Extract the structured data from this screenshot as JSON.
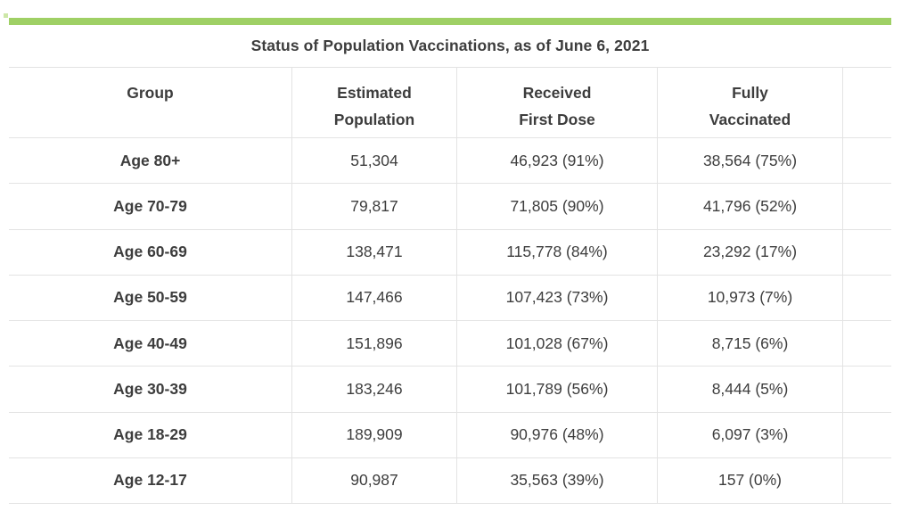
{
  "title": "Status of Population Vaccinations, as of June 6, 2021",
  "table": {
    "headers": [
      {
        "label": "Group"
      },
      {
        "label": "Estimated\nPopulation"
      },
      {
        "label": "Received\nFirst Dose"
      },
      {
        "label": "Fully\nVaccinated"
      },
      {
        "label": ""
      }
    ],
    "rows": [
      {
        "group": "Age 80+",
        "estimated_population": "51,304",
        "received_first_dose": "46,923 (91%)",
        "fully_vaccinated": "38,564 (75%)"
      },
      {
        "group": "Age 70-79",
        "estimated_population": "79,817",
        "received_first_dose": "71,805 (90%)",
        "fully_vaccinated": "41,796 (52%)"
      },
      {
        "group": "Age 60-69",
        "estimated_population": "138,471",
        "received_first_dose": "115,778 (84%)",
        "fully_vaccinated": "23,292 (17%)"
      },
      {
        "group": "Age 50-59",
        "estimated_population": "147,466",
        "received_first_dose": "107,423 (73%)",
        "fully_vaccinated": "10,973 (7%)"
      },
      {
        "group": "Age 40-49",
        "estimated_population": "151,896",
        "received_first_dose": "101,028 (67%)",
        "fully_vaccinated": "8,715 (6%)"
      },
      {
        "group": "Age 30-39",
        "estimated_population": "183,246",
        "received_first_dose": "101,789 (56%)",
        "fully_vaccinated": "8,444 (5%)"
      },
      {
        "group": "Age 18-29",
        "estimated_population": "189,909",
        "received_first_dose": "90,976 (48%)",
        "fully_vaccinated": "6,097 (3%)"
      },
      {
        "group": "Age 12-17",
        "estimated_population": "90,987",
        "received_first_dose": "35,563 (39%)",
        "fully_vaccinated": "157 (0%)"
      }
    ]
  },
  "chart_data": {
    "type": "table",
    "title": "Status of Population Vaccinations, as of June 6, 2021",
    "columns": [
      "Group",
      "Estimated Population",
      "Received First Dose",
      "Fully Vaccinated"
    ],
    "rows": [
      {
        "group": "Age 80+",
        "estimated_population": 51304,
        "received_first_dose": 46923,
        "received_first_dose_pct": 91,
        "fully_vaccinated": 38564,
        "fully_vaccinated_pct": 75
      },
      {
        "group": "Age 70-79",
        "estimated_population": 79817,
        "received_first_dose": 71805,
        "received_first_dose_pct": 90,
        "fully_vaccinated": 41796,
        "fully_vaccinated_pct": 52
      },
      {
        "group": "Age 60-69",
        "estimated_population": 138471,
        "received_first_dose": 115778,
        "received_first_dose_pct": 84,
        "fully_vaccinated": 23292,
        "fully_vaccinated_pct": 17
      },
      {
        "group": "Age 50-59",
        "estimated_population": 147466,
        "received_first_dose": 107423,
        "received_first_dose_pct": 73,
        "fully_vaccinated": 10973,
        "fully_vaccinated_pct": 7
      },
      {
        "group": "Age 40-49",
        "estimated_population": 151896,
        "received_first_dose": 101028,
        "received_first_dose_pct": 67,
        "fully_vaccinated": 8715,
        "fully_vaccinated_pct": 6
      },
      {
        "group": "Age 30-39",
        "estimated_population": 183246,
        "received_first_dose": 101789,
        "received_first_dose_pct": 56,
        "fully_vaccinated": 8444,
        "fully_vaccinated_pct": 5
      },
      {
        "group": "Age 18-29",
        "estimated_population": 189909,
        "received_first_dose": 90976,
        "received_first_dose_pct": 48,
        "fully_vaccinated": 6097,
        "fully_vaccinated_pct": 3
      },
      {
        "group": "Age 12-17",
        "estimated_population": 90987,
        "received_first_dose": 35563,
        "received_first_dose_pct": 39,
        "fully_vaccinated": 157,
        "fully_vaccinated_pct": 0
      }
    ]
  },
  "colors": {
    "accent": "#9fd065",
    "border": "#e3e3e3",
    "text": "#3d3d3d",
    "background": "#ffffff"
  }
}
